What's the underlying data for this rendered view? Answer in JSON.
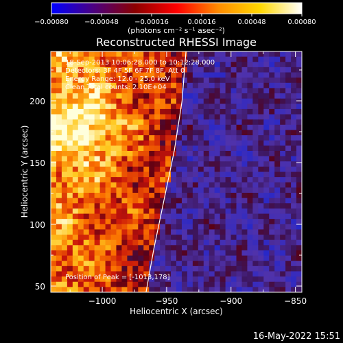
{
  "chart_data": {
    "type": "heatmap",
    "title": "Reconstructed RHESSI Image",
    "xlabel": "Heliocentric X (arcsec)",
    "ylabel": "Heliocentric Y (arcsec)",
    "xlim": [
      -1040,
      -845
    ],
    "ylim": [
      45,
      240
    ],
    "x_ticks": [
      -1000,
      -950,
      -900,
      -850
    ],
    "x_tick_labels": [
      "−1000",
      "−950",
      "−900",
      "−850"
    ],
    "y_ticks": [
      50,
      100,
      150,
      200
    ],
    "y_tick_labels": [
      "50",
      "100",
      "150",
      "200"
    ],
    "colorbar": {
      "range": [
        -0.0008,
        0.0008
      ],
      "ticks": [
        -0.0008,
        -0.00048,
        -0.00016,
        0.00016,
        0.00048,
        0.0008
      ],
      "tick_labels": [
        "−0.00080",
        "−0.00048",
        "−0.00016",
        "0.00016",
        "0.00048",
        "0.00080"
      ],
      "label": "(photons cm⁻² s⁻¹ asec⁻²)",
      "colors": [
        "#0000ff",
        "#4b0082",
        "#8b0000",
        "#ff0000",
        "#ff8c00",
        "#ffd700",
        "#ffffff"
      ]
    },
    "annotations": [
      "18-Sep-2013 10:06:28.000 to 10:12:28.000",
      "Detectors: 3F 4F 5F 6F 7F 8F, Att 0",
      "Energy Range: 12.0 - 25.0 keV",
      "Clean    Total counts: 2.10E+04"
    ],
    "peak_label": "Position of Peak = [-1013,178]",
    "peak": [
      -1013,
      178
    ],
    "limb": [
      [
        -935,
        240
      ],
      [
        -938,
        200
      ],
      [
        -944,
        160
      ],
      [
        -952,
        120
      ],
      [
        -960,
        80
      ],
      [
        -966,
        45
      ]
    ]
  },
  "footer": {
    "timestamp": "16-May-2022 15:51"
  }
}
